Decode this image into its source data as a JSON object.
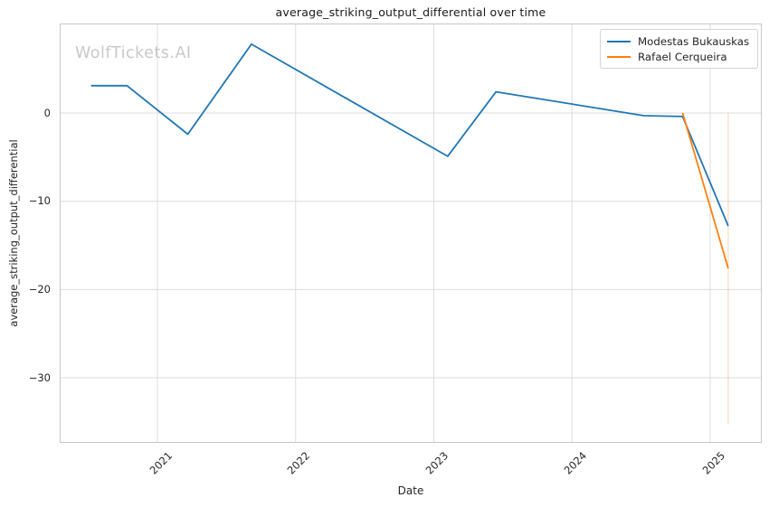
{
  "watermark": "WolfTickets.AI",
  "chart_data": {
    "type": "line",
    "title": "average_striking_output_differential over time",
    "xlabel": "Date",
    "ylabel": "average_striking_output_differential",
    "xlim": [
      2020.293,
      2025.373
    ],
    "ylim": [
      -37.37,
      10.14
    ],
    "grid": true,
    "legend_position": "upper right",
    "x_ticks": {
      "values": [
        2021,
        2022,
        2023,
        2024,
        2025
      ],
      "labels": [
        "2021",
        "2022",
        "2023",
        "2024",
        "2025"
      ]
    },
    "y_ticks": {
      "values": [
        0,
        -10,
        -20,
        -30
      ],
      "labels": [
        "0",
        "−10",
        "−20",
        "−30"
      ]
    },
    "series": [
      {
        "name": "Modestas Bukauskas",
        "color": "#1f77b4",
        "x": [
          2020.52,
          2020.78,
          2021.22,
          2021.68,
          2023.1,
          2023.45,
          2024.52,
          2024.8,
          2025.13
        ],
        "y": [
          3.1,
          3.1,
          -2.4,
          7.8,
          -4.9,
          2.4,
          -0.3,
          -0.4,
          -12.8
        ]
      },
      {
        "name": "Rafael Cerqueira",
        "color": "#ff7f0e",
        "x": [
          2024.8,
          2025.13
        ],
        "y": [
          0.0,
          -17.6
        ],
        "error_bar": {
          "x": 2025.13,
          "y_top": 0.0,
          "y_bottom": -35.3
        }
      }
    ],
    "colors": {
      "grid": "#dcdcdc",
      "spine": "#c6c6c6",
      "text": "#262626",
      "watermark": "#c9c9c9",
      "background": "#ffffff"
    }
  }
}
